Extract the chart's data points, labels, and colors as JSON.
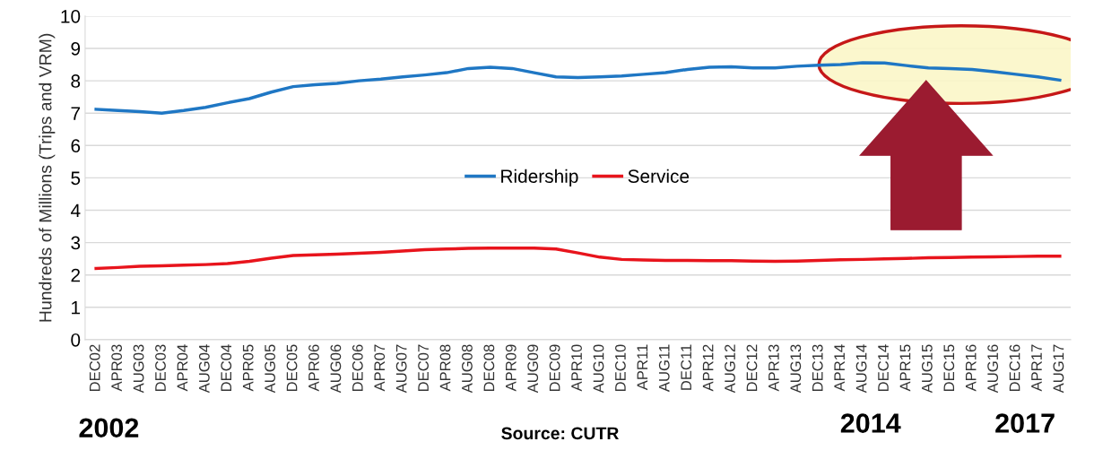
{
  "chart_data": {
    "type": "line",
    "ylabel": "Hundreds of Millions (Trips and VRM)",
    "categories": [
      "DEC02",
      "APR03",
      "AUG03",
      "DEC03",
      "APR04",
      "AUG04",
      "DEC04",
      "APR05",
      "AUG05",
      "DEC05",
      "APR06",
      "AUG06",
      "DEC06",
      "APR07",
      "AUG07",
      "DEC07",
      "APR08",
      "AUG08",
      "DEC08",
      "APR09",
      "AUG09",
      "DEC09",
      "APR10",
      "AUG10",
      "DEC10",
      "APR11",
      "AUG11",
      "DEC11",
      "APR12",
      "AUG12",
      "DEC12",
      "APR13",
      "AUG13",
      "DEC13",
      "APR14",
      "AUG14",
      "DEC14",
      "APR15",
      "AUG15",
      "DEC15",
      "APR16",
      "AUG16",
      "DEC16",
      "APR17",
      "AUG17"
    ],
    "series": [
      {
        "name": "Ridership",
        "color": "#1f77c4",
        "values": [
          7.12,
          7.08,
          7.05,
          7.0,
          7.08,
          7.18,
          7.32,
          7.45,
          7.65,
          7.82,
          7.88,
          7.92,
          8.0,
          8.05,
          8.12,
          8.18,
          8.25,
          8.38,
          8.42,
          8.38,
          8.25,
          8.12,
          8.1,
          8.12,
          8.15,
          8.2,
          8.25,
          8.35,
          8.42,
          8.43,
          8.4,
          8.4,
          8.45,
          8.48,
          8.5,
          8.56,
          8.55,
          8.47,
          8.4,
          8.38,
          8.35,
          8.28,
          8.2,
          8.12,
          8.02
        ]
      },
      {
        "name": "Service",
        "color": "#e8141c",
        "values": [
          2.2,
          2.23,
          2.27,
          2.28,
          2.3,
          2.32,
          2.35,
          2.42,
          2.52,
          2.6,
          2.62,
          2.64,
          2.67,
          2.7,
          2.74,
          2.78,
          2.8,
          2.82,
          2.83,
          2.83,
          2.83,
          2.8,
          2.68,
          2.55,
          2.48,
          2.46,
          2.45,
          2.45,
          2.44,
          2.44,
          2.43,
          2.42,
          2.43,
          2.45,
          2.47,
          2.48,
          2.5,
          2.51,
          2.53,
          2.54,
          2.55,
          2.56,
          2.57,
          2.58,
          2.58
        ]
      }
    ],
    "ylim": [
      0,
      10
    ],
    "yticks": [
      0,
      1,
      2,
      3,
      4,
      5,
      6,
      7,
      8,
      9,
      10
    ],
    "grid": "y",
    "legend": "center",
    "marker": "none",
    "line_style": "solid",
    "annotations": [
      "2002",
      "Source: CUTR",
      "2014",
      "2017"
    ]
  }
}
